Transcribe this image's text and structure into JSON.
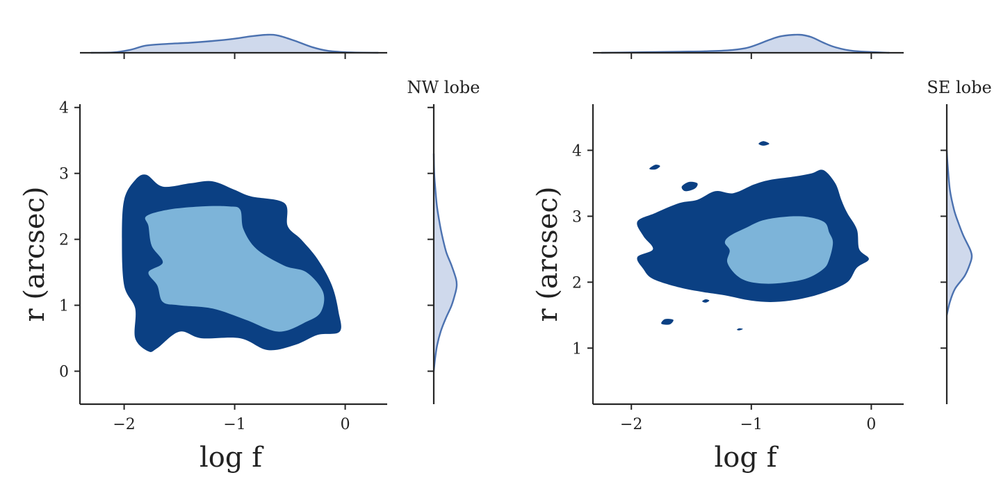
{
  "colors": {
    "outer_contour": "#0b4083",
    "inner_contour": "#7db4d9",
    "marginal_line": "#4c72b0",
    "marginal_fill": "#cfd9ec",
    "axis": "#262626"
  },
  "chart_data": [
    {
      "type": "contour",
      "title": "NW lobe",
      "xlabel": "log f",
      "ylabel": "r (arcsec)",
      "xlim": [
        -2.4,
        0.38
      ],
      "ylim": [
        -0.5,
        4.05
      ],
      "xticks": [
        -2,
        -1,
        0
      ],
      "xtick_labels": [
        "−2",
        "−1",
        "0"
      ],
      "yticks": [
        0,
        1,
        2,
        3,
        4
      ],
      "ytick_labels": [
        "0",
        "1",
        "2",
        "3",
        "4"
      ],
      "levels": [
        {
          "name": "outer",
          "polygons": [
            [
              [
                -1.9,
                2.9
              ],
              [
                -1.8,
                2.98
              ],
              [
                -1.65,
                2.8
              ],
              [
                -1.4,
                2.85
              ],
              [
                -1.2,
                2.88
              ],
              [
                -1.0,
                2.75
              ],
              [
                -0.85,
                2.65
              ],
              [
                -0.55,
                2.55
              ],
              [
                -0.52,
                2.2
              ],
              [
                -0.4,
                2.0
              ],
              [
                -0.25,
                1.7
              ],
              [
                -0.12,
                1.3
              ],
              [
                -0.06,
                0.9
              ],
              [
                -0.05,
                0.6
              ],
              [
                -0.25,
                0.55
              ],
              [
                -0.45,
                0.4
              ],
              [
                -0.7,
                0.32
              ],
              [
                -0.95,
                0.5
              ],
              [
                -1.3,
                0.5
              ],
              [
                -1.5,
                0.6
              ],
              [
                -1.7,
                0.35
              ],
              [
                -1.78,
                0.3
              ],
              [
                -1.9,
                0.5
              ],
              [
                -1.9,
                0.95
              ],
              [
                -2.0,
                1.3
              ],
              [
                -2.02,
                2.0
              ],
              [
                -2.0,
                2.6
              ]
            ]
          ]
        },
        {
          "name": "inner",
          "polygons": [
            [
              [
                -1.8,
                2.35
              ],
              [
                -1.6,
                2.45
              ],
              [
                -1.3,
                2.5
              ],
              [
                -1.05,
                2.5
              ],
              [
                -0.95,
                2.45
              ],
              [
                -0.92,
                2.15
              ],
              [
                -0.8,
                1.85
              ],
              [
                -0.55,
                1.6
              ],
              [
                -0.35,
                1.5
              ],
              [
                -0.2,
                1.2
              ],
              [
                -0.22,
                0.9
              ],
              [
                -0.35,
                0.75
              ],
              [
                -0.6,
                0.6
              ],
              [
                -0.9,
                0.78
              ],
              [
                -1.2,
                0.95
              ],
              [
                -1.5,
                1.0
              ],
              [
                -1.65,
                1.05
              ],
              [
                -1.7,
                1.3
              ],
              [
                -1.78,
                1.5
              ],
              [
                -1.65,
                1.65
              ],
              [
                -1.75,
                1.9
              ],
              [
                -1.78,
                2.2
              ]
            ]
          ]
        }
      ],
      "marginal_x": {
        "x": [
          -2.3,
          -2.1,
          -1.95,
          -1.8,
          -1.6,
          -1.4,
          -1.2,
          -1.0,
          -0.85,
          -0.7,
          -0.6,
          -0.45,
          -0.3,
          -0.15,
          0.05,
          0.3
        ],
        "density": [
          0.0,
          0.02,
          0.15,
          0.38,
          0.47,
          0.53,
          0.62,
          0.74,
          0.87,
          0.95,
          0.9,
          0.62,
          0.3,
          0.1,
          0.02,
          0.0
        ]
      },
      "marginal_y": {
        "y": [
          0.0,
          0.2,
          0.4,
          0.6,
          0.8,
          1.0,
          1.2,
          1.3,
          1.4,
          1.6,
          1.8,
          2.0,
          2.2,
          2.5,
          2.8,
          3.0,
          3.3
        ],
        "density": [
          0.0,
          0.06,
          0.15,
          0.3,
          0.52,
          0.78,
          0.95,
          1.0,
          0.97,
          0.78,
          0.55,
          0.4,
          0.28,
          0.14,
          0.06,
          0.02,
          0.0
        ]
      }
    },
    {
      "type": "contour",
      "title": "SE lobe",
      "xlabel": "log f",
      "ylabel": "r (arcsec)",
      "xlim": [
        -2.32,
        0.27
      ],
      "ylim": [
        0.15,
        4.7
      ],
      "xticks": [
        -2,
        -1,
        0
      ],
      "xtick_labels": [
        "−2",
        "−1",
        "0"
      ],
      "yticks": [
        1,
        2,
        3,
        4
      ],
      "ytick_labels": [
        "1",
        "2",
        "3",
        "4"
      ],
      "levels": [
        {
          "name": "outer",
          "polygons": [
            [
              [
                -1.6,
                3.2
              ],
              [
                -1.45,
                3.25
              ],
              [
                -1.3,
                3.38
              ],
              [
                -1.15,
                3.35
              ],
              [
                -0.98,
                3.48
              ],
              [
                -0.85,
                3.55
              ],
              [
                -0.65,
                3.6
              ],
              [
                -0.5,
                3.65
              ],
              [
                -0.4,
                3.7
              ],
              [
                -0.3,
                3.5
              ],
              [
                -0.25,
                3.25
              ],
              [
                -0.2,
                3.05
              ],
              [
                -0.12,
                2.8
              ],
              [
                -0.1,
                2.5
              ],
              [
                -0.02,
                2.35
              ],
              [
                -0.12,
                2.22
              ],
              [
                -0.2,
                2.0
              ],
              [
                -0.38,
                1.85
              ],
              [
                -0.58,
                1.75
              ],
              [
                -0.8,
                1.7
              ],
              [
                -1.0,
                1.72
              ],
              [
                -1.22,
                1.8
              ],
              [
                -1.4,
                1.85
              ],
              [
                -1.6,
                1.92
              ],
              [
                -1.82,
                2.05
              ],
              [
                -1.9,
                2.2
              ],
              [
                -1.95,
                2.38
              ],
              [
                -1.82,
                2.5
              ],
              [
                -1.9,
                2.7
              ],
              [
                -1.95,
                2.92
              ],
              [
                -1.8,
                3.05
              ]
            ],
            [
              [
                -1.58,
                3.45
              ],
              [
                -1.52,
                3.52
              ],
              [
                -1.45,
                3.5
              ],
              [
                -1.47,
                3.42
              ],
              [
                -1.55,
                3.38
              ]
            ],
            [
              [
                -1.8,
                3.78
              ],
              [
                -1.76,
                3.76
              ],
              [
                -1.8,
                3.71
              ],
              [
                -1.85,
                3.72
              ]
            ],
            [
              [
                -0.9,
                4.14
              ],
              [
                -0.85,
                4.1
              ],
              [
                -0.9,
                4.07
              ],
              [
                -0.94,
                4.1
              ]
            ],
            [
              [
                -1.72,
                1.44
              ],
              [
                -1.65,
                1.43
              ],
              [
                -1.68,
                1.36
              ],
              [
                -1.75,
                1.37
              ]
            ],
            [
              [
                -1.38,
                1.74
              ],
              [
                -1.35,
                1.72
              ],
              [
                -1.38,
                1.69
              ],
              [
                -1.41,
                1.71
              ]
            ],
            [
              [
                -1.1,
                1.3
              ],
              [
                -1.07,
                1.29
              ],
              [
                -1.1,
                1.27
              ],
              [
                -1.12,
                1.28
              ]
            ]
          ]
        },
        {
          "name": "inner",
          "polygons": [
            [
              [
                -1.18,
                2.7
              ],
              [
                -1.05,
                2.82
              ],
              [
                -0.88,
                2.95
              ],
              [
                -0.6,
                3.0
              ],
              [
                -0.4,
                2.92
              ],
              [
                -0.35,
                2.75
              ],
              [
                -0.32,
                2.6
              ],
              [
                -0.35,
                2.35
              ],
              [
                -0.4,
                2.2
              ],
              [
                -0.55,
                2.05
              ],
              [
                -0.8,
                1.98
              ],
              [
                -1.0,
                2.0
              ],
              [
                -1.12,
                2.1
              ],
              [
                -1.2,
                2.3
              ],
              [
                -1.18,
                2.48
              ],
              [
                -1.22,
                2.6
              ]
            ]
          ]
        }
      ],
      "marginal_x": {
        "x": [
          -2.25,
          -2.0,
          -1.8,
          -1.6,
          -1.4,
          -1.2,
          -1.05,
          -0.95,
          -0.85,
          -0.75,
          -0.6,
          -0.5,
          -0.4,
          -0.3,
          -0.15,
          0.15
        ],
        "density": [
          0.0,
          0.02,
          0.04,
          0.06,
          0.08,
          0.13,
          0.25,
          0.45,
          0.7,
          0.9,
          0.98,
          0.85,
          0.55,
          0.3,
          0.1,
          0.0
        ]
      },
      "marginal_y": {
        "y": [
          1.5,
          1.7,
          1.9,
          2.1,
          2.3,
          2.4,
          2.5,
          2.7,
          2.9,
          3.1,
          3.4,
          3.8,
          4.0
        ],
        "density": [
          0.0,
          0.12,
          0.32,
          0.7,
          0.92,
          0.97,
          0.9,
          0.65,
          0.45,
          0.28,
          0.12,
          0.03,
          0.0
        ]
      }
    }
  ]
}
